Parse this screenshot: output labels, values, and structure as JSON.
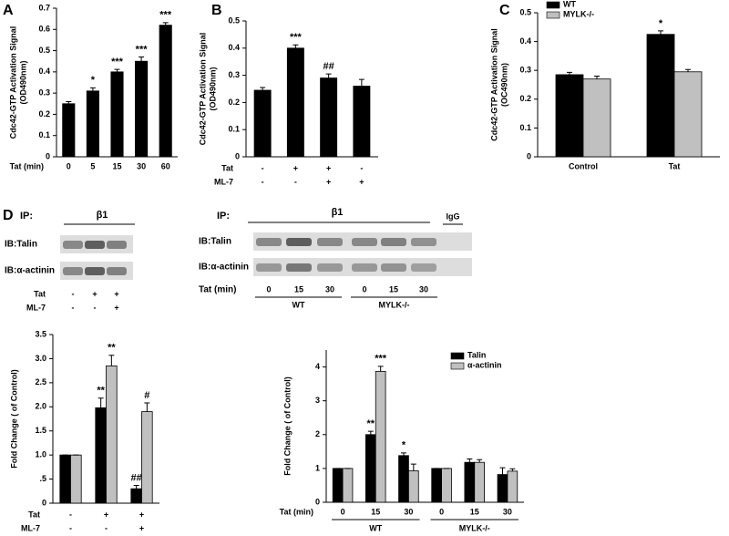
{
  "panel_labels": [
    "A",
    "B",
    "C",
    "D"
  ],
  "chart_data": [
    {
      "type": "bar",
      "y_label": [
        "Cdc42-GTP Activation Signal",
        "(OD490nm)"
      ],
      "x_label": "Tat (min)",
      "categories": [
        "0",
        "5",
        "15",
        "30",
        "60"
      ],
      "values": [
        0.25,
        0.31,
        0.4,
        0.45,
        0.62
      ],
      "errors": [
        0.01,
        0.015,
        0.012,
        0.02,
        0.012
      ],
      "annotations": [
        null,
        "*",
        "***",
        "***",
        "***"
      ],
      "color": "#000000",
      "ylim": [
        0,
        0.7
      ],
      "yticks": [
        0,
        0.1,
        0.2,
        0.3,
        0.4,
        0.5,
        0.6,
        0.7
      ],
      "grid": false
    },
    {
      "type": "bar",
      "y_label": [
        "Cdc42-GTP Activation Signal",
        "(OD490nm)"
      ],
      "category_rows": [
        {
          "label": "Tat",
          "values": [
            "-",
            "+",
            "+",
            "-"
          ]
        },
        {
          "label": "ML-7",
          "values": [
            "-",
            "-",
            "+",
            "+"
          ]
        }
      ],
      "values": [
        0.245,
        0.4,
        0.29,
        0.26
      ],
      "errors": [
        0.01,
        0.012,
        0.015,
        0.025
      ],
      "annotations": [
        null,
        "***",
        "##",
        null
      ],
      "color": "#000000",
      "ylim": [
        0,
        0.5
      ],
      "yticks": [
        0,
        0.1,
        0.2,
        0.3,
        0.4,
        0.5
      ],
      "grid": false
    },
    {
      "type": "bar",
      "y_label": [
        "Cdc42-GTP Activation Signal",
        "(OC490nm)"
      ],
      "categories": [
        "Control",
        "Tat"
      ],
      "series": [
        {
          "name": "WT",
          "color": "#000000",
          "values": [
            0.285,
            0.425
          ],
          "errors": [
            0.008,
            0.012
          ],
          "annotations": [
            null,
            "*"
          ]
        },
        {
          "name": "MYLK-/-",
          "color": "#c0c0c0",
          "values": [
            0.27,
            0.295
          ],
          "errors": [
            0.01,
            0.008
          ],
          "annotations": [
            null,
            null
          ]
        }
      ],
      "legend": "upper left",
      "ylim": [
        0,
        0.5
      ],
      "yticks": [
        0,
        0.1,
        0.2,
        0.3,
        0.4,
        0.5
      ],
      "grid": false
    },
    {
      "type": "bar",
      "y_label": [
        "Fold Change ( of Control)"
      ],
      "category_rows": [
        {
          "label": "Tat",
          "values": [
            "-",
            "+",
            "+"
          ]
        },
        {
          "label": "ML-7",
          "values": [
            "-",
            "-",
            "+"
          ]
        }
      ],
      "series": [
        {
          "color": "#000000",
          "values": [
            1,
            1.98,
            0.3
          ],
          "errors": [
            0,
            0.2,
            0.07
          ],
          "annotations": [
            null,
            "**",
            "##"
          ]
        },
        {
          "color": "#c0c0c0",
          "values": [
            1,
            2.85,
            1.9
          ],
          "errors": [
            0,
            0.22,
            0.18
          ],
          "annotations": [
            null,
            "**",
            "#"
          ]
        }
      ],
      "ylim": [
        0,
        3.5
      ],
      "yticks": [
        0,
        {
          "value": 0.5,
          "label": ".5"
        },
        {
          "value": 1,
          "label": "1.0"
        },
        1.5,
        {
          "value": 2,
          "label": "2.0"
        },
        2.5,
        {
          "value": 3,
          "label": "3.0"
        },
        3.5
      ],
      "grid": false
    },
    {
      "type": "bar",
      "y_label": [
        "Fold Change ( of Control)"
      ],
      "x_label": "Tat (min)",
      "categories": [
        "0",
        "15",
        "30",
        "0",
        "15",
        "30"
      ],
      "groups": [
        "WT",
        "MYLK-/-"
      ],
      "series": [
        {
          "name": "Talin",
          "color": "#000000",
          "values": [
            1,
            2,
            1.38,
            1,
            1.18,
            0.82
          ],
          "errors": [
            0,
            0.1,
            0.08,
            0,
            0.1,
            0.2
          ],
          "annotations": [
            null,
            "**",
            "*",
            null,
            null,
            null
          ]
        },
        {
          "name": "α-actinin",
          "color": "#c0c0c0",
          "values": [
            1,
            3.87,
            0.93,
            1,
            1.18,
            0.92
          ],
          "errors": [
            0,
            0.15,
            0.2,
            0,
            0.08,
            0.07
          ],
          "annotations": [
            null,
            "***",
            null,
            null,
            null,
            null
          ]
        }
      ],
      "legend": "upper right",
      "ylim": [
        0,
        4.5
      ],
      "yticks": [
        0,
        1,
        2,
        3,
        4
      ],
      "grid": false
    }
  ],
  "blots": [
    {
      "ip": "IP:",
      "antibody": "β1",
      "rows": [
        "IB:Talin",
        "IB:α-actinin"
      ],
      "conditions": [
        {
          "label": "Tat",
          "values": [
            "-",
            "+",
            "+"
          ]
        },
        {
          "label": "ML-7",
          "values": [
            "-",
            "-",
            "+"
          ]
        }
      ]
    },
    {
      "ip": "IP:",
      "antibody": "β1",
      "control": "IgG",
      "rows": [
        "IB:Talin",
        "IB:α-actinin"
      ],
      "x_label": "Tat (min)",
      "lanes": [
        "0",
        "15",
        "30",
        "0",
        "15",
        "30"
      ],
      "groups": [
        "WT",
        "MYLK-/-"
      ]
    }
  ]
}
